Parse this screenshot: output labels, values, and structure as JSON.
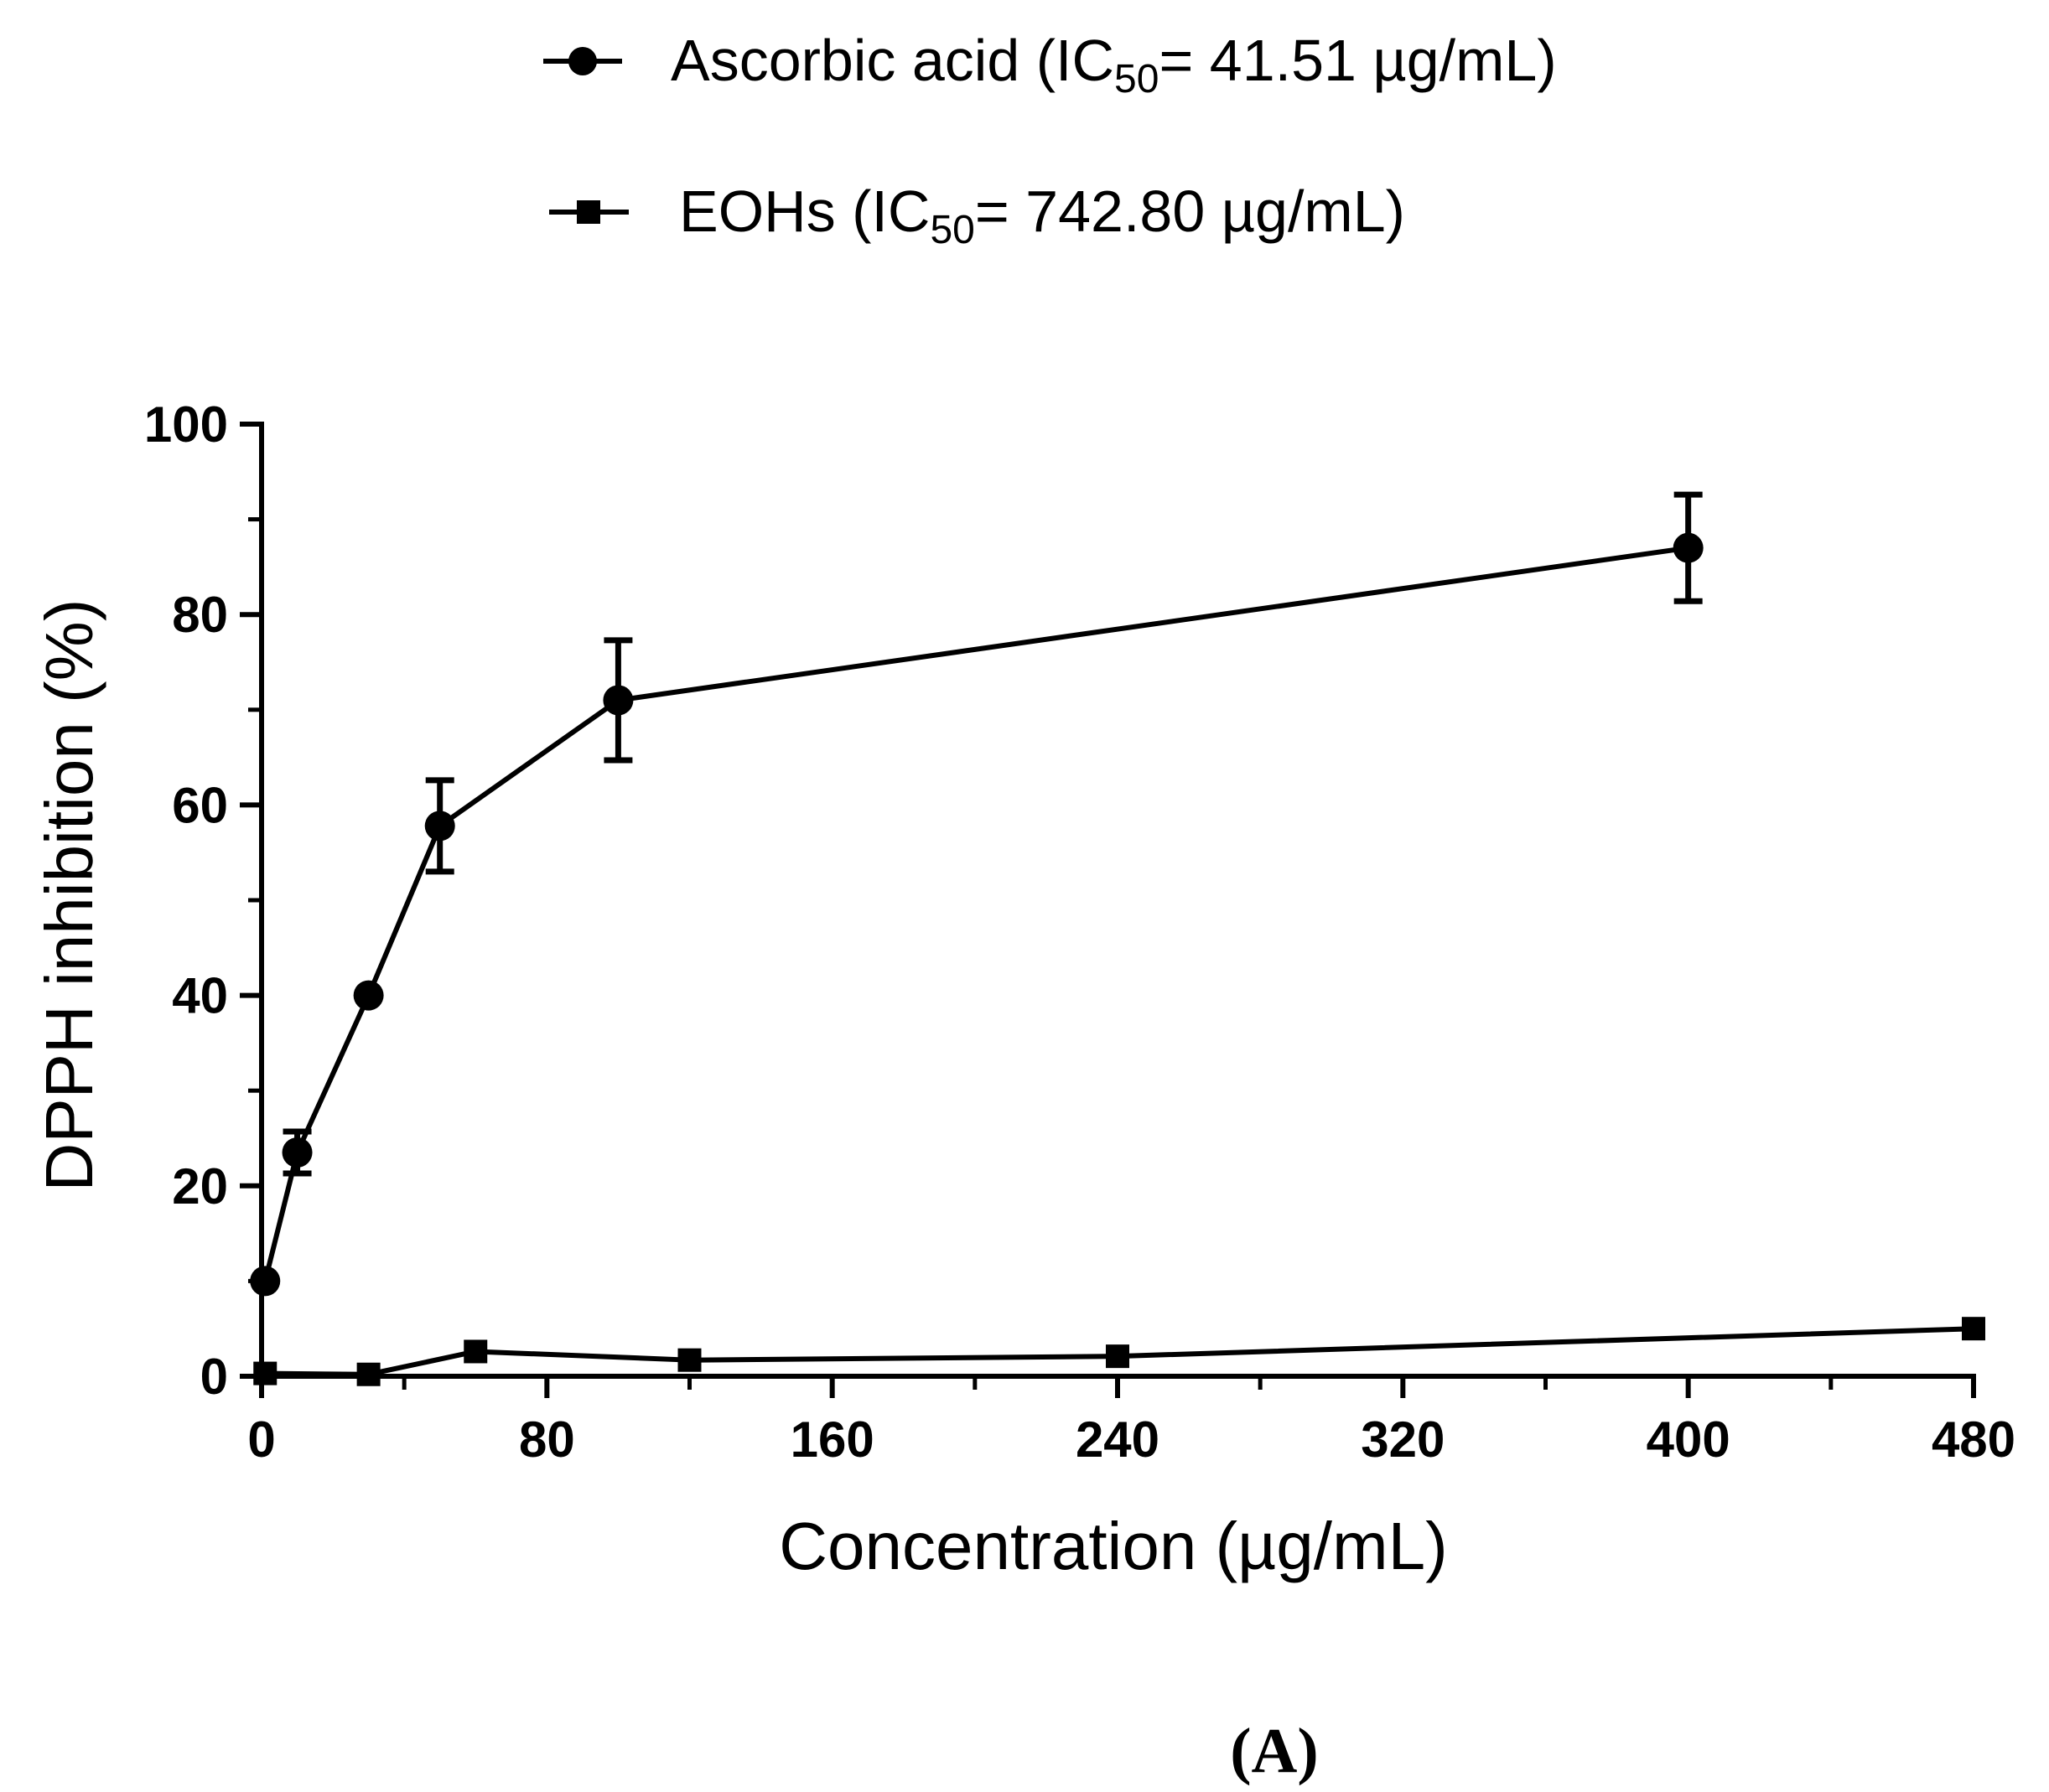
{
  "chart_data": {
    "type": "line",
    "xlabel": "Concentration (µg/mL)",
    "ylabel": "DPPH inhibition (%)",
    "xlim": [
      0,
      480
    ],
    "ylim": [
      0,
      100
    ],
    "xticks": [
      "0",
      "80",
      "160",
      "240",
      "320",
      "400",
      "480"
    ],
    "yticks": [
      "0",
      "20",
      "40",
      "60",
      "80",
      "100"
    ],
    "grid": false,
    "legend_position": "top",
    "series": [
      {
        "name": "Ascorbic acid (IC50= 41.51 µg/mL)",
        "legend": {
          "prefix": "Ascorbic acid (IC",
          "sub": "50",
          "suffix": "= 41.51 µg/mL)"
        },
        "marker": "circle",
        "color": "#000000",
        "x": [
          1,
          10,
          30,
          50,
          100,
          400
        ],
        "y": [
          10,
          23.5,
          40,
          57.8,
          71,
          87
        ],
        "error": [
          0,
          2.2,
          0,
          4.8,
          6.3,
          5.6
        ]
      },
      {
        "name": "EOHs (IC50= 742.80 µg/mL)",
        "legend": {
          "prefix": "EOHs (IC",
          "sub": "50",
          "suffix": "= 742.80 µg/mL)"
        },
        "marker": "square",
        "color": "#000000",
        "x": [
          1,
          30,
          60,
          120,
          240,
          480
        ],
        "y": [
          0.3,
          0.2,
          2.6,
          1.7,
          2.1,
          5
        ]
      }
    ],
    "panel_label": "(A)"
  }
}
